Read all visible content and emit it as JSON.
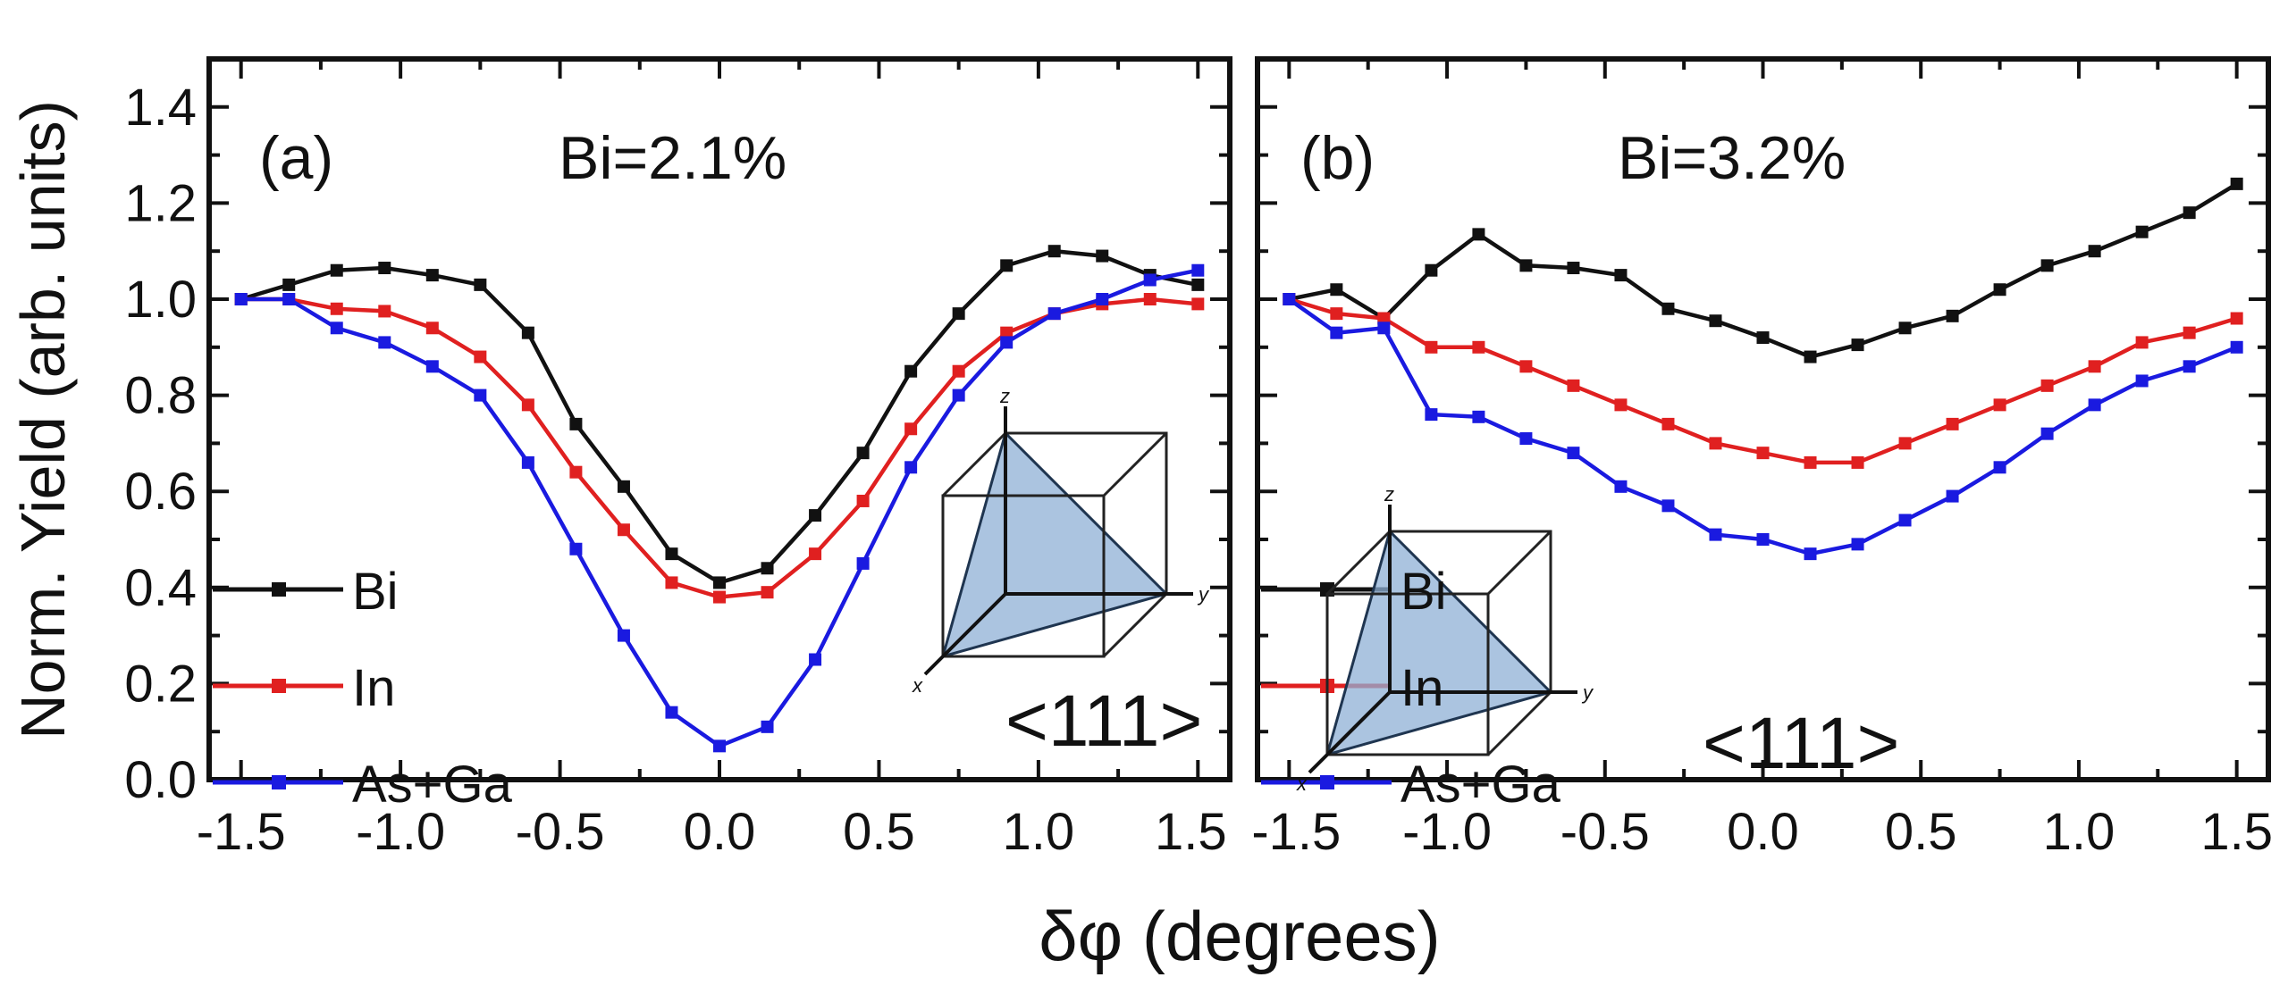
{
  "figure": {
    "ylabel": "Norm. Yield (arb. units)",
    "xlabel": "δφ (degrees)"
  },
  "chart_data": [
    {
      "type": "line",
      "panel_label": "(a)",
      "title": "Bi=2.1%",
      "direction_label": "<111>",
      "inset_axis_labels": [
        "z",
        "y",
        "x"
      ],
      "xlabel": "δφ (degrees)",
      "ylabel": "Norm. Yield (arb. units)",
      "xlim": [
        -1.6,
        1.6
      ],
      "ylim": [
        0,
        1.5
      ],
      "x_ticks": [
        -1.5,
        -1.0,
        -0.5,
        0.0,
        0.5,
        1.0,
        1.5
      ],
      "x_tick_labels": [
        "-1.5",
        "-1.0",
        "-0.5",
        "0.0",
        "0.5",
        "1.0",
        "1.5"
      ],
      "y_ticks": [
        0.0,
        0.2,
        0.4,
        0.6,
        0.8,
        1.0,
        1.2,
        1.4
      ],
      "y_tick_labels": [
        "0.0",
        "0.2",
        "0.4",
        "0.6",
        "0.8",
        "1.0",
        "1.2",
        "1.4"
      ],
      "grid": false,
      "legend_position": "bottom-left",
      "x": [
        -1.5,
        -1.35,
        -1.2,
        -1.05,
        -0.9,
        -0.75,
        -0.6,
        -0.45,
        -0.3,
        -0.15,
        0.0,
        0.15,
        0.3,
        0.45,
        0.6,
        0.75,
        0.9,
        1.05,
        1.2,
        1.35,
        1.5
      ],
      "series": [
        {
          "name": "Bi",
          "color": "#111111",
          "values": [
            1.0,
            1.03,
            1.06,
            1.065,
            1.05,
            1.03,
            0.93,
            0.74,
            0.61,
            0.47,
            0.41,
            0.44,
            0.55,
            0.68,
            0.85,
            0.97,
            1.07,
            1.1,
            1.09,
            1.05,
            1.03
          ]
        },
        {
          "name": "In",
          "color": "#e02020",
          "values": [
            1.0,
            1.0,
            0.98,
            0.975,
            0.94,
            0.88,
            0.78,
            0.64,
            0.52,
            0.41,
            0.38,
            0.39,
            0.47,
            0.58,
            0.73,
            0.85,
            0.93,
            0.97,
            0.99,
            1.0,
            0.99
          ]
        },
        {
          "name": "As+Ga",
          "color": "#1a1ae0",
          "values": [
            1.0,
            1.0,
            0.94,
            0.91,
            0.86,
            0.8,
            0.66,
            0.48,
            0.3,
            0.14,
            0.07,
            0.11,
            0.25,
            0.45,
            0.65,
            0.8,
            0.91,
            0.97,
            1.0,
            1.04,
            1.06
          ]
        }
      ]
    },
    {
      "type": "line",
      "panel_label": "(b)",
      "title": "Bi=3.2%",
      "direction_label": "<111>",
      "inset_axis_labels": [
        "z",
        "y",
        "x"
      ],
      "xlabel": "δφ (degrees)",
      "ylabel": "Norm. Yield (arb. units)",
      "xlim": [
        -1.6,
        1.6
      ],
      "ylim": [
        0,
        1.5
      ],
      "x_ticks": [
        -1.5,
        -1.0,
        -0.5,
        0.0,
        0.5,
        1.0,
        1.5
      ],
      "x_tick_labels": [
        "-1.5",
        "-1.0",
        "-0.5",
        "0.0",
        "0.5",
        "1.0",
        "1.5"
      ],
      "y_ticks": [
        0.0,
        0.2,
        0.4,
        0.6,
        0.8,
        1.0,
        1.2,
        1.4
      ],
      "grid": false,
      "legend_position": "bottom-left",
      "x": [
        -1.5,
        -1.35,
        -1.2,
        -1.05,
        -0.9,
        -0.75,
        -0.6,
        -0.45,
        -0.3,
        -0.15,
        0.0,
        0.15,
        0.3,
        0.45,
        0.6,
        0.75,
        0.9,
        1.05,
        1.2,
        1.35,
        1.5
      ],
      "series": [
        {
          "name": "Bi",
          "color": "#111111",
          "values": [
            1.0,
            1.02,
            0.96,
            1.06,
            1.135,
            1.07,
            1.065,
            1.05,
            0.98,
            0.955,
            0.92,
            0.88,
            0.905,
            0.94,
            0.965,
            1.02,
            1.07,
            1.1,
            1.14,
            1.18,
            1.24
          ]
        },
        {
          "name": "In",
          "color": "#e02020",
          "values": [
            1.0,
            0.97,
            0.96,
            0.9,
            0.9,
            0.86,
            0.82,
            0.78,
            0.74,
            0.7,
            0.68,
            0.66,
            0.66,
            0.7,
            0.74,
            0.78,
            0.82,
            0.86,
            0.91,
            0.93,
            0.96
          ]
        },
        {
          "name": "As+Ga",
          "color": "#1a1ae0",
          "values": [
            1.0,
            0.93,
            0.94,
            0.76,
            0.755,
            0.71,
            0.68,
            0.61,
            0.57,
            0.51,
            0.5,
            0.47,
            0.49,
            0.54,
            0.59,
            0.65,
            0.72,
            0.78,
            0.83,
            0.86,
            0.9
          ]
        }
      ]
    }
  ]
}
